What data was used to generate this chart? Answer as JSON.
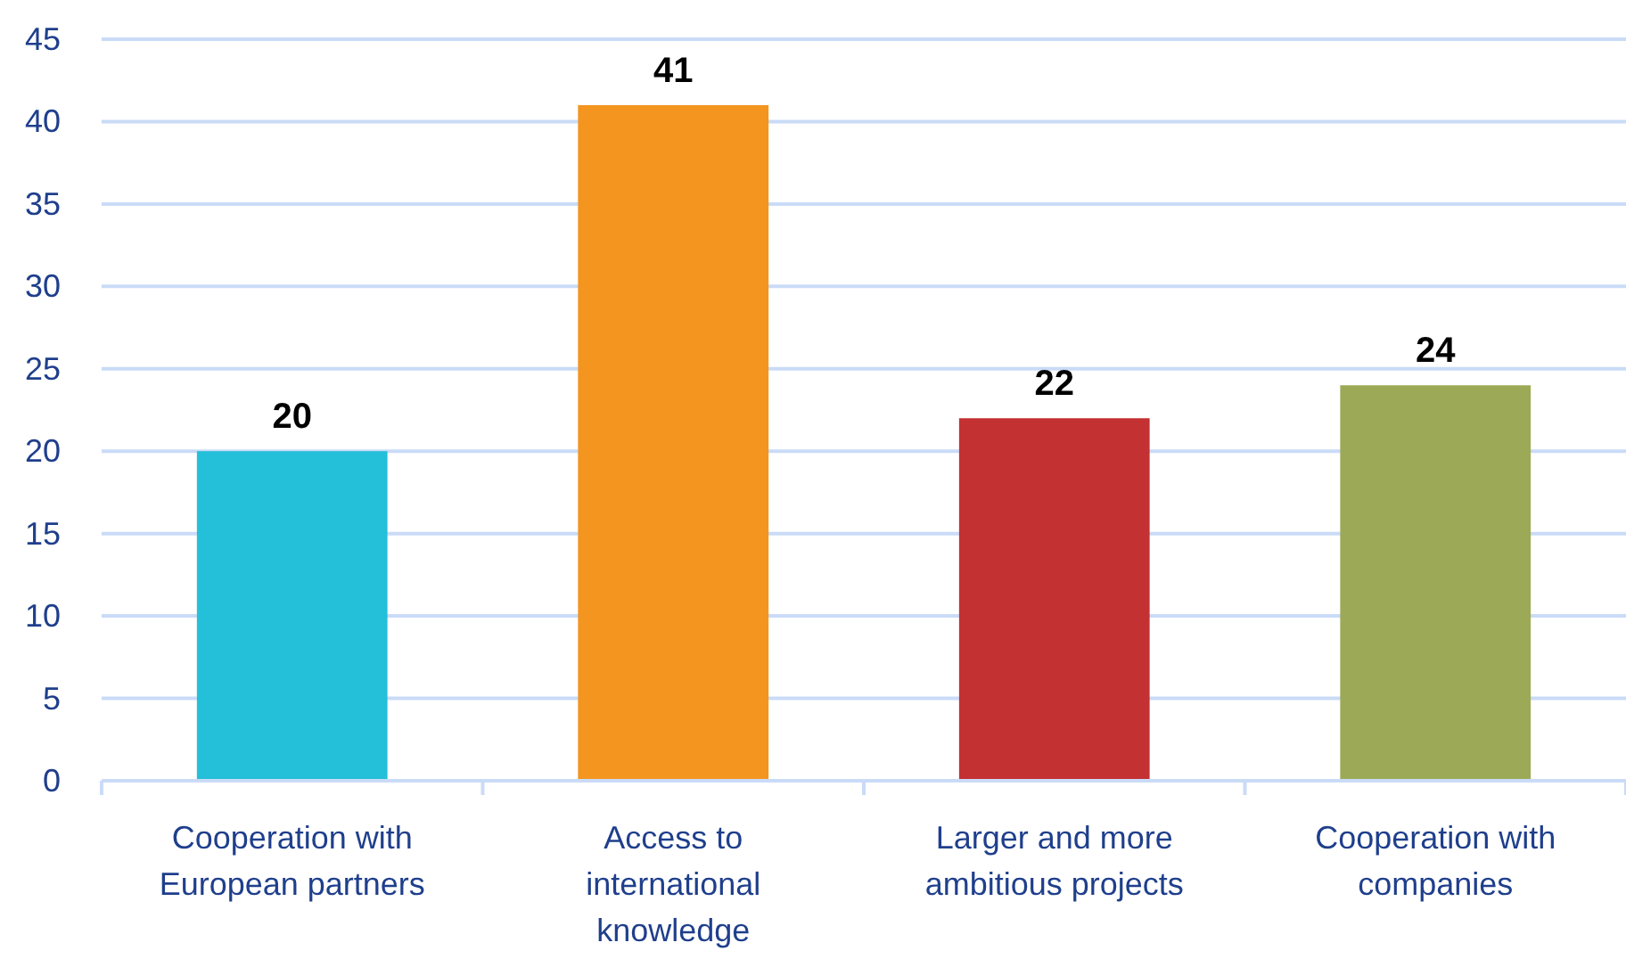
{
  "chart_data": {
    "type": "bar",
    "categories": [
      "Cooperation with European partners",
      "Access to international knowledge",
      "Larger and more ambitious projects",
      "Cooperation with companies"
    ],
    "values": [
      20,
      41,
      22,
      24
    ],
    "colors": [
      "#24BFD9",
      "#F3951F",
      "#C43133",
      "#9CAA57"
    ],
    "ylim": [
      0,
      45
    ],
    "yticks": [
      0,
      5,
      10,
      15,
      20,
      25,
      30,
      35,
      40,
      45
    ],
    "grid": "y",
    "data_labels": true
  }
}
